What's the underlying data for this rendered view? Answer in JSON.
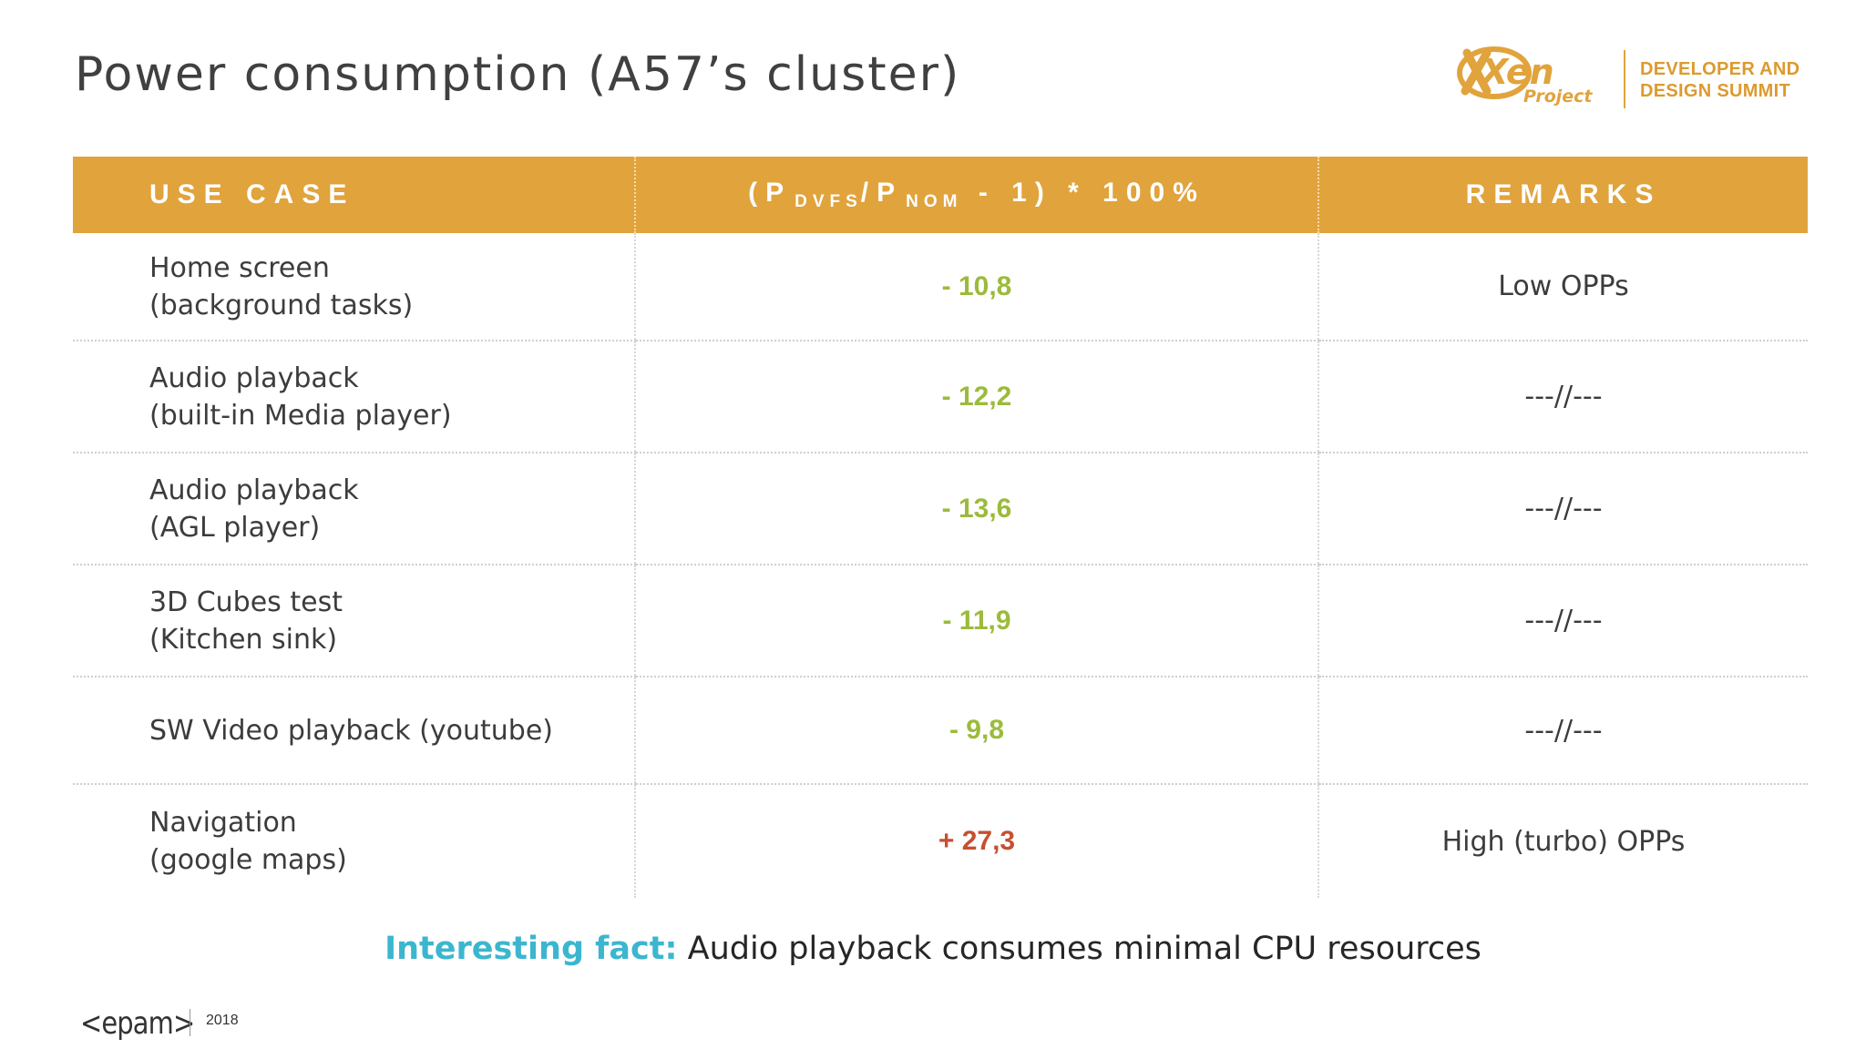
{
  "slide": {
    "title": "Power consumption (A57’s cluster)"
  },
  "branding": {
    "logo_word": "Xen",
    "logo_sub": "Project",
    "summit_line1": "DEVELOPER AND",
    "summit_line2": "DESIGN SUMMIT",
    "accent_color": "#E1A33C"
  },
  "table": {
    "headers": {
      "use_case": "USE CASE",
      "formula_open": "(P",
      "formula_sub1": "DVFS",
      "formula_slash": "/P",
      "formula_sub2": "NOM",
      "formula_close": "- 1) * 100%",
      "remarks": "REMARKS"
    },
    "rows": [
      {
        "line1": "Home screen",
        "line2": "(background tasks)",
        "value": "- 10,8",
        "remark": "Low OPPs"
      },
      {
        "line1": "Audio playback",
        "line2": "(built-in Media player)",
        "value": "- 12,2",
        "remark": "---//---"
      },
      {
        "line1": "Audio playback",
        "line2": "(AGL player)",
        "value": "- 13,6",
        "remark": "---//---"
      },
      {
        "line1": "3D Cubes test",
        "line2": "(Kitchen sink)",
        "value": "- 11,9",
        "remark": "---//---"
      },
      {
        "line1": "SW Video playback (youtube)",
        "line2": "",
        "value": "- 9,8",
        "remark": "---//---"
      },
      {
        "line1": "Navigation",
        "line2": "(google maps)",
        "value": "+ 27,3",
        "remark": "High (turbo) OPPs"
      }
    ],
    "negative_color": "#9BBB3B",
    "positive_color": "#C6502F"
  },
  "fact": {
    "label": "Interesting fact:",
    "text": " Audio playback consumes minimal CPU resources"
  },
  "footer": {
    "company": "<epam>",
    "year": "2018"
  }
}
